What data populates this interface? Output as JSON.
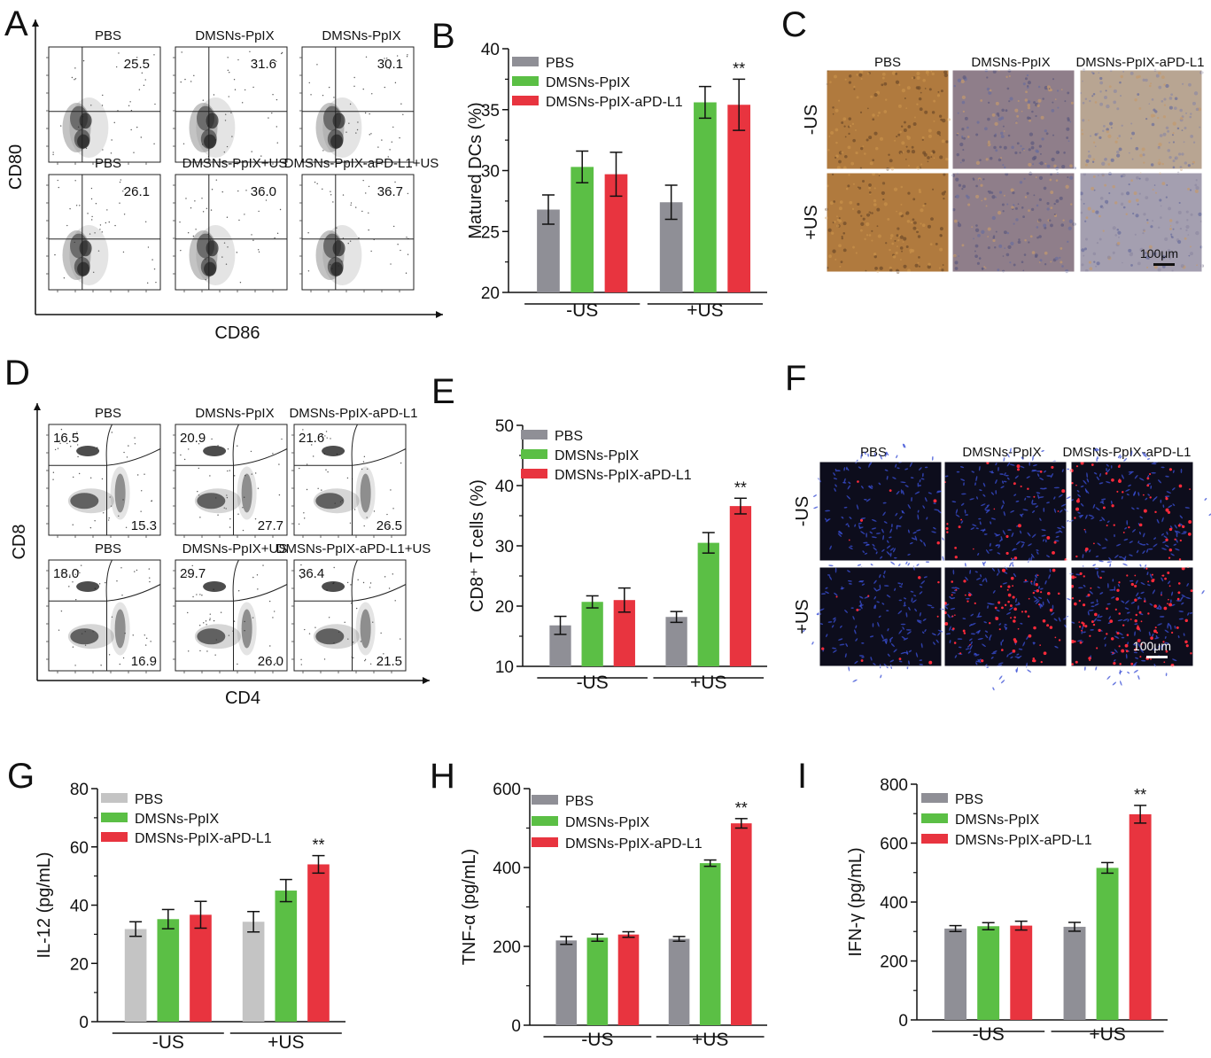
{
  "panels": [
    {
      "id": "A",
      "letter": "A",
      "type": "flow",
      "xlabel": "CD86",
      "ylabel": "CD80",
      "quadrant": "cross",
      "rows": [
        [
          {
            "title": "PBS",
            "values": [
              "25.5"
            ]
          },
          {
            "title": "DMSNs-PpIX",
            "values": [
              "31.6"
            ]
          },
          {
            "title": "DMSNs-PpIX",
            "values": [
              "30.1"
            ]
          }
        ],
        [
          {
            "title": "PBS",
            "values": [
              "26.1"
            ]
          },
          {
            "title": "DMSNs-PpIX+US",
            "values": [
              "36.0"
            ]
          },
          {
            "title": "DMSNs-PpIX-aPD-L1+US",
            "values": [
              "36.7"
            ]
          }
        ]
      ]
    },
    {
      "id": "D",
      "letter": "D",
      "type": "flow",
      "xlabel": "CD4",
      "ylabel": "CD8",
      "quadrant": "curve",
      "rows": [
        [
          {
            "title": "PBS",
            "values": [
              "16.5",
              "15.3"
            ]
          },
          {
            "title": "DMSNs-PpIX",
            "values": [
              "20.9",
              "27.7"
            ]
          },
          {
            "title": "DMSNs-PpIX-aPD-L1",
            "values": [
              "21.6",
              "26.5"
            ]
          }
        ],
        [
          {
            "title": "PBS",
            "values": [
              "18.0",
              "16.9"
            ]
          },
          {
            "title": "DMSNs-PpIX+US",
            "values": [
              "29.7",
              "26.0"
            ]
          },
          {
            "title": "DMSNs-PpIX-aPD-L1+US",
            "values": [
              "36.4",
              "21.5"
            ]
          }
        ]
      ]
    },
    {
      "id": "C",
      "letter": "C",
      "type": "micro",
      "style": "ihc",
      "cols": [
        "PBS",
        "DMSNs-PpIX",
        "DMSNs-PpIX-aPD-L1"
      ],
      "rows": [
        "-US",
        "+US"
      ],
      "scalebar": "100μm"
    },
    {
      "id": "F",
      "letter": "F",
      "type": "micro",
      "style": "fluor",
      "cols": [
        "PBS",
        "DMSNs-PpIX",
        "DMSNs-PpIX-aPD-L1"
      ],
      "rows": [
        "-US",
        "+US"
      ],
      "scalebar": "100μm"
    }
  ],
  "chart_data": [
    {
      "id": "B",
      "letter": "B",
      "type": "bar",
      "ylabel": "Matured DCs (%)",
      "ylim": [
        20,
        40
      ],
      "yticks": [
        20,
        25,
        30,
        35,
        40
      ],
      "groups": [
        "-US",
        "+US"
      ],
      "legend": [
        "PBS",
        "DMSNs-PpIX",
        "DMSNs-PpIX-aPD-L1"
      ],
      "colors": [
        "#8f8f96",
        "#5bbf45",
        "#e8343f"
      ],
      "values": [
        [
          26.8,
          30.3,
          29.7
        ],
        [
          27.4,
          35.6,
          35.4
        ]
      ],
      "errors": [
        [
          1.2,
          1.3,
          1.8
        ],
        [
          1.4,
          1.3,
          2.1
        ]
      ],
      "sig": [
        [
          null,
          null,
          null
        ],
        [
          null,
          null,
          "**"
        ]
      ]
    },
    {
      "id": "E",
      "letter": "E",
      "type": "bar",
      "ylabel": "CD8⁺ T cells (%)",
      "ylim": [
        10,
        50
      ],
      "yticks": [
        10,
        20,
        30,
        40,
        50
      ],
      "groups": [
        "-US",
        "+US"
      ],
      "legend": [
        "PBS",
        "DMSNs-PpIX",
        "DMSNs-PpIX-aPD-L1"
      ],
      "colors": [
        "#8f8f96",
        "#5bbf45",
        "#e8343f"
      ],
      "values": [
        [
          16.8,
          20.7,
          21.0
        ],
        [
          18.2,
          30.5,
          36.6
        ]
      ],
      "errors": [
        [
          1.5,
          1.0,
          2.0
        ],
        [
          0.9,
          1.7,
          1.3
        ]
      ],
      "sig": [
        [
          null,
          null,
          null
        ],
        [
          null,
          null,
          "**"
        ]
      ]
    },
    {
      "id": "G",
      "letter": "G",
      "type": "bar",
      "ylabel": "IL-12 (pg/mL)",
      "ylim": [
        0,
        80
      ],
      "yticks": [
        0,
        20,
        40,
        60,
        80
      ],
      "groups": [
        "-US",
        "+US"
      ],
      "legend": [
        "PBS",
        "DMSNs-PpIX",
        "DMSNs-PpIX-aPD-L1"
      ],
      "colors": [
        "#c4c4c4",
        "#5bbf45",
        "#e8343f"
      ],
      "values": [
        [
          31.8,
          35.2,
          36.7
        ],
        [
          34.3,
          45.0,
          54.0
        ]
      ],
      "errors": [
        [
          2.5,
          3.3,
          4.6
        ],
        [
          3.5,
          3.8,
          3.0
        ]
      ],
      "sig": [
        [
          null,
          null,
          null
        ],
        [
          null,
          null,
          "**"
        ]
      ]
    },
    {
      "id": "H",
      "letter": "H",
      "type": "bar",
      "ylabel": "TNF-α (pg/mL)",
      "ylim": [
        0,
        600
      ],
      "yticks": [
        0,
        200,
        400,
        600
      ],
      "groups": [
        "-US",
        "+US"
      ],
      "legend": [
        "PBS",
        "DMSNs-PpIX",
        "DMSNs-PpIX-aPD-L1"
      ],
      "colors": [
        "#8f8f96",
        "#5bbf45",
        "#e8343f"
      ],
      "values": [
        [
          215,
          222,
          230
        ],
        [
          219,
          411,
          512
        ]
      ],
      "errors": [
        [
          10,
          9,
          7
        ],
        [
          6,
          8,
          12
        ]
      ],
      "sig": [
        [
          null,
          null,
          null
        ],
        [
          null,
          null,
          "**"
        ]
      ]
    },
    {
      "id": "I",
      "letter": "I",
      "type": "bar",
      "ylabel": "IFN-γ (pg/mL)",
      "ylim": [
        0,
        800
      ],
      "yticks": [
        0,
        200,
        400,
        600,
        800
      ],
      "groups": [
        "-US",
        "+US"
      ],
      "legend": [
        "PBS",
        "DMSNs-PpIX",
        "DMSNs-PpIX-aPD-L1"
      ],
      "colors": [
        "#8f8f96",
        "#5bbf45",
        "#e8343f"
      ],
      "values": [
        [
          310,
          318,
          320
        ],
        [
          316,
          516,
          698
        ]
      ],
      "errors": [
        [
          10,
          12,
          15
        ],
        [
          15,
          18,
          30
        ]
      ],
      "sig": [
        [
          null,
          null,
          null
        ],
        [
          null,
          null,
          "**"
        ]
      ]
    }
  ]
}
